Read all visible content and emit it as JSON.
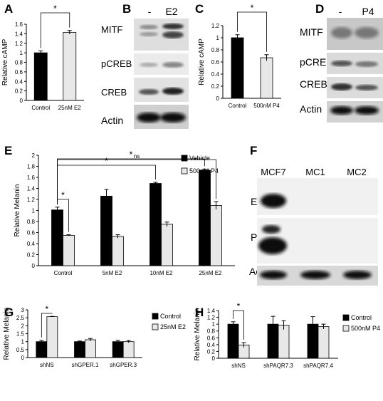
{
  "panel_letters": [
    "A",
    "B",
    "C",
    "D",
    "E",
    "F",
    "G",
    "H"
  ],
  "chart_data": [
    {
      "panel": "A",
      "type": "bar",
      "categories": [
        "Control",
        "25nM E2"
      ],
      "values": [
        1.0,
        1.43
      ],
      "errors": [
        0.04,
        0.04
      ],
      "colors": [
        "#000000",
        "#e8e8e8"
      ],
      "ylabel": "Relative cAMP",
      "ylim": [
        0,
        1.6
      ],
      "yticks": [
        "0",
        "0.2",
        "0.4",
        "0.6",
        "0.8",
        "1",
        "1.2",
        "1.4",
        "1.6"
      ],
      "annotations": [
        {
          "from": 0,
          "to": 1,
          "text": "*"
        }
      ]
    },
    {
      "panel": "C",
      "type": "bar",
      "categories": [
        "Control",
        "500nM P4"
      ],
      "values": [
        1.0,
        0.67
      ],
      "errors": [
        0.05,
        0.05
      ],
      "colors": [
        "#000000",
        "#e8e8e8"
      ],
      "ylabel": "Relative cAMP",
      "ylim": [
        0,
        1.2
      ],
      "yticks": [
        "0",
        "0.2",
        "0.4",
        "0.6",
        "0.8",
        "1",
        "1.2"
      ],
      "annotations": [
        {
          "from": 0,
          "to": 1,
          "text": "*"
        }
      ]
    },
    {
      "panel": "E",
      "type": "bar",
      "categories": [
        "Control",
        "5nM E2",
        "10nM E2",
        "25nM E2"
      ],
      "series": [
        {
          "name": "Vehicle",
          "color": "#000000",
          "values": [
            1.01,
            1.26,
            1.49,
            1.73
          ],
          "errors": [
            0.05,
            0.12,
            0.02,
            0.02
          ]
        },
        {
          "name": "500nM P4",
          "color": "#e8e8e8",
          "values": [
            0.55,
            0.53,
            0.75,
            1.09
          ],
          "errors": [
            0.01,
            0.03,
            0.04,
            0.07
          ]
        }
      ],
      "ylabel": "Relative Melanin",
      "ylim": [
        0,
        2
      ],
      "yticks": [
        "0",
        "0.2",
        "0.4",
        "0.6",
        "0.8",
        "1",
        "1.2",
        "1.4",
        "1.6",
        "1.8",
        "2"
      ],
      "legend": "top-right",
      "annotations": [
        {
          "text": "*",
          "x1": 0,
          "x2": 0.5
        },
        {
          "text": "*",
          "x1": 0,
          "x2": 2
        },
        {
          "text": "*",
          "x1": 0,
          "x2": 3
        },
        {
          "text": "ns",
          "x1": 0,
          "x2": 3.5
        }
      ]
    },
    {
      "panel": "G",
      "type": "bar",
      "categories": [
        "shNS",
        "shGPER.1",
        "shGPER.3"
      ],
      "series": [
        {
          "name": "Control",
          "color": "#000000",
          "values": [
            1.0,
            1.0,
            1.0
          ],
          "errors": [
            0.08,
            0.04,
            0.08
          ]
        },
        {
          "name": "25nM E2",
          "color": "#e8e8e8",
          "values": [
            2.57,
            1.12,
            1.0
          ],
          "errors": [
            0.02,
            0.08,
            0.07
          ]
        }
      ],
      "ylabel": "Relative Melanin",
      "ylim": [
        0,
        3
      ],
      "yticks": [
        "0",
        "0.5",
        "1",
        "1.5",
        "2",
        "2.5",
        "3"
      ],
      "legend": "right",
      "annotations": [
        {
          "text": "*",
          "x1": 0,
          "x2": 0.5
        }
      ]
    },
    {
      "panel": "H",
      "type": "bar",
      "categories": [
        "shNS",
        "shPAQR7.3",
        "shPAQR7.4"
      ],
      "series": [
        {
          "name": "Control",
          "color": "#000000",
          "values": [
            1.0,
            1.0,
            1.0
          ],
          "errors": [
            0.07,
            0.23,
            0.22
          ]
        },
        {
          "name": "500nM P4",
          "color": "#e8e8e8",
          "values": [
            0.39,
            0.97,
            0.93
          ],
          "errors": [
            0.07,
            0.13,
            0.07
          ]
        }
      ],
      "ylabel": "Relative Melanin",
      "ylim": [
        0,
        1.4
      ],
      "yticks": [
        "0",
        "0.2",
        "0.4",
        "0.6",
        "0.8",
        "1",
        "1.2",
        "1.4"
      ],
      "legend": "right",
      "annotations": [
        {
          "text": "*",
          "x1": 0,
          "x2": 0.5
        }
      ]
    }
  ],
  "blots": {
    "B": {
      "lanes": [
        "-",
        "E2"
      ],
      "rows": [
        "MITF",
        "pCREB",
        "CREB",
        "Actin"
      ]
    },
    "D": {
      "lanes": [
        "-",
        "P4"
      ],
      "rows": [
        "MITF",
        "pCREB",
        "CREB",
        "Actin"
      ]
    },
    "F": {
      "lanes": [
        "MCF7",
        "MC1",
        "MC2"
      ],
      "rows": [
        "ERα",
        "PR",
        "Actin"
      ]
    }
  }
}
